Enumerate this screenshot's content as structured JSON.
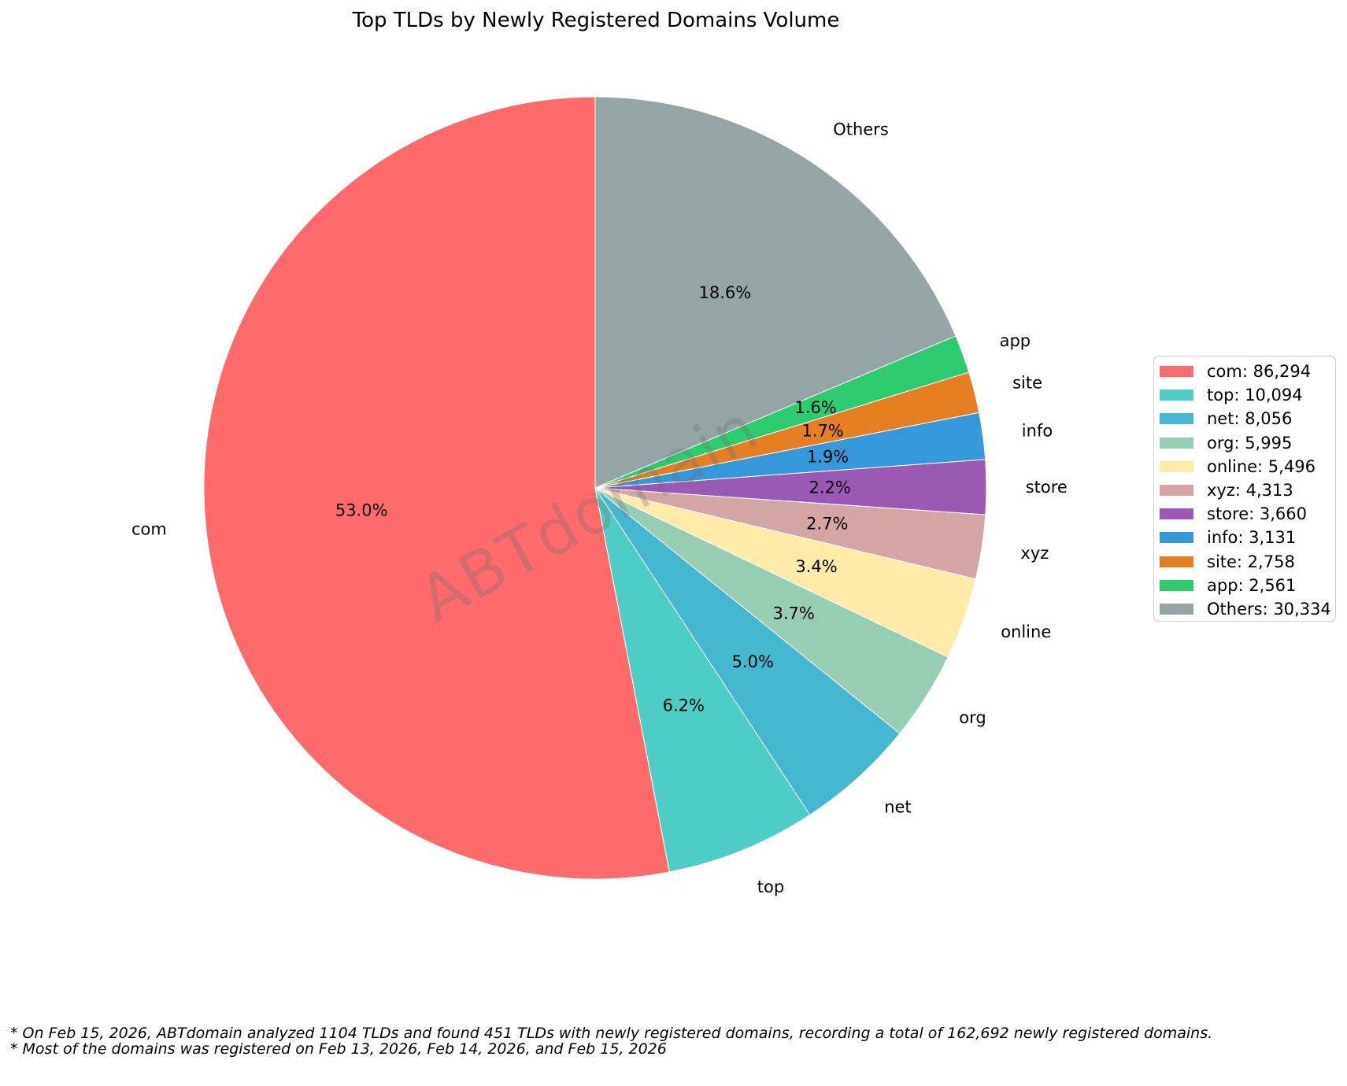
{
  "title": "Top TLDs by Newly Registered Domains Volume",
  "watermark": "ABTdomain",
  "footnotes": [
    "* On Feb 15, 2026, ABTdomain analyzed 1104 TLDs and found 451 TLDs with newly registered domains, recording a total of 162,692 newly registered domains.",
    "* Most of the domains was registered on Feb 13, 2026, Feb 14, 2026, and Feb 15, 2026"
  ],
  "chart_data": {
    "type": "pie",
    "title": "Top TLDs by Newly Registered Domains Volume",
    "total": 162692,
    "start_angle_deg": 90,
    "direction": "counterclockwise",
    "label_distance": 1.1,
    "pct_distance": 0.6,
    "legend_position": "right",
    "slices": [
      {
        "label": "com",
        "value": 86294,
        "percent_label": "53.0%",
        "color": "#FF6B6B",
        "legend_label": "com: 86,294"
      },
      {
        "label": "top",
        "value": 10094,
        "percent_label": "6.2%",
        "color": "#4ECDC4",
        "legend_label": "top: 10,094"
      },
      {
        "label": "net",
        "value": 8056,
        "percent_label": "5.0%",
        "color": "#45B7D1",
        "legend_label": "net: 8,056"
      },
      {
        "label": "org",
        "value": 5995,
        "percent_label": "3.7%",
        "color": "#96CEB4",
        "legend_label": "org: 5,995"
      },
      {
        "label": "online",
        "value": 5496,
        "percent_label": "3.4%",
        "color": "#FFEAA7",
        "legend_label": "online: 5,496"
      },
      {
        "label": "xyz",
        "value": 4313,
        "percent_label": "2.7%",
        "color": "#D4A5A5",
        "legend_label": "xyz: 4,313"
      },
      {
        "label": "store",
        "value": 3660,
        "percent_label": "2.2%",
        "color": "#9B59B6",
        "legend_label": "store: 3,660"
      },
      {
        "label": "info",
        "value": 3131,
        "percent_label": "1.9%",
        "color": "#3498DB",
        "legend_label": "info: 3,131"
      },
      {
        "label": "site",
        "value": 2758,
        "percent_label": "1.7%",
        "color": "#E67E22",
        "legend_label": "site: 2,758"
      },
      {
        "label": "app",
        "value": 2561,
        "percent_label": "1.6%",
        "color": "#2ECC71",
        "legend_label": "app: 2,561"
      },
      {
        "label": "Others",
        "value": 30334,
        "percent_label": "18.6%",
        "color": "#95A5A6",
        "legend_label": "Others: 30,334"
      }
    ]
  }
}
